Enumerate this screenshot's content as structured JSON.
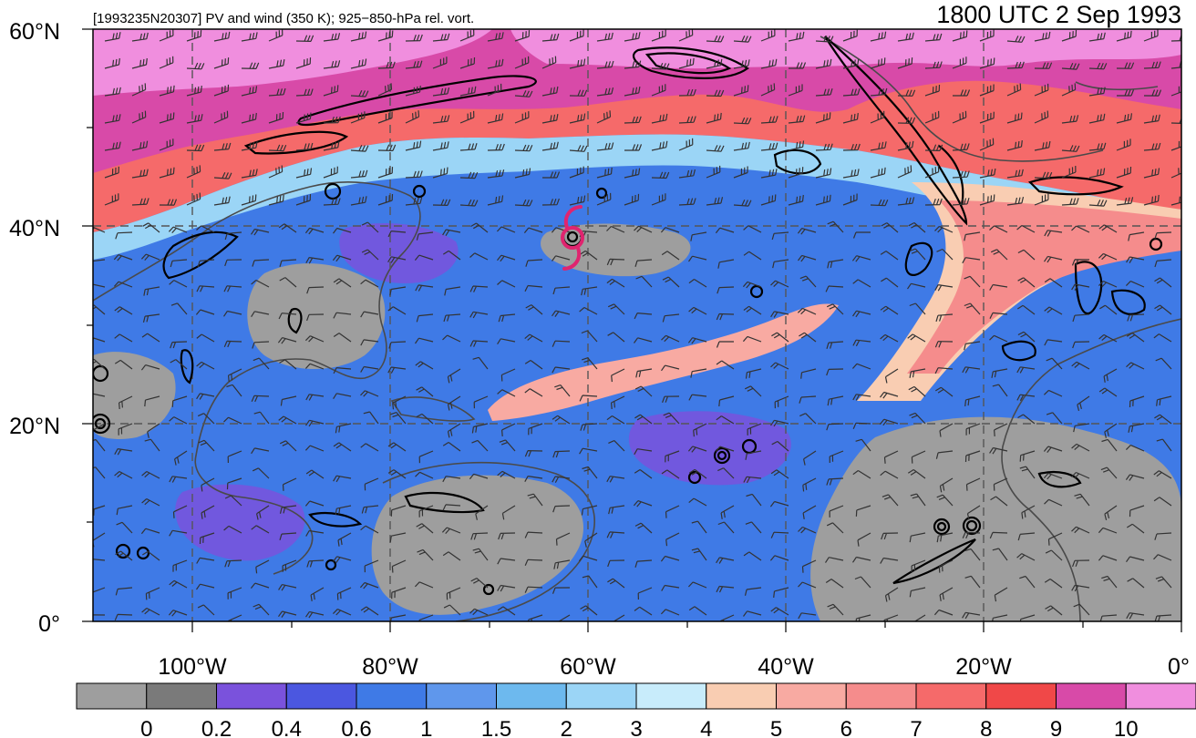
{
  "header": {
    "subtitle": "[1993235N20307] PV and wind (350 K); 925−850-hPa rel. vort.",
    "valid_time": "1800 UTC 2 Sep 1993"
  },
  "axes": {
    "lat_labels": [
      "60°N",
      "40°N",
      "20°N",
      "0°"
    ],
    "lon_labels": [
      "100°W",
      "80°W",
      "60°W",
      "40°W",
      "20°W",
      "0°"
    ]
  },
  "colorbar": {
    "labels": [
      "0",
      "0.2",
      "0.4",
      "0.6",
      "1",
      "1.5",
      "2",
      "3",
      "4",
      "5",
      "6",
      "7",
      "8",
      "9",
      "10"
    ],
    "colors": [
      "#9e9e9e",
      "#7a7a7a",
      "#7a52dc",
      "#4b57e0",
      "#3f7ae6",
      "#5f97ec",
      "#6db9ee",
      "#9bd5f6",
      "#c8ecfb",
      "#f9cdb2",
      "#f8aaa2",
      "#f58c8c",
      "#f56a6a",
      "#f04848",
      "#d84aa8",
      "#f08ede"
    ]
  },
  "map": {
    "storm_symbol_color": "#e0246f",
    "storm_symbol": "tropical-cyclone-icon"
  }
}
